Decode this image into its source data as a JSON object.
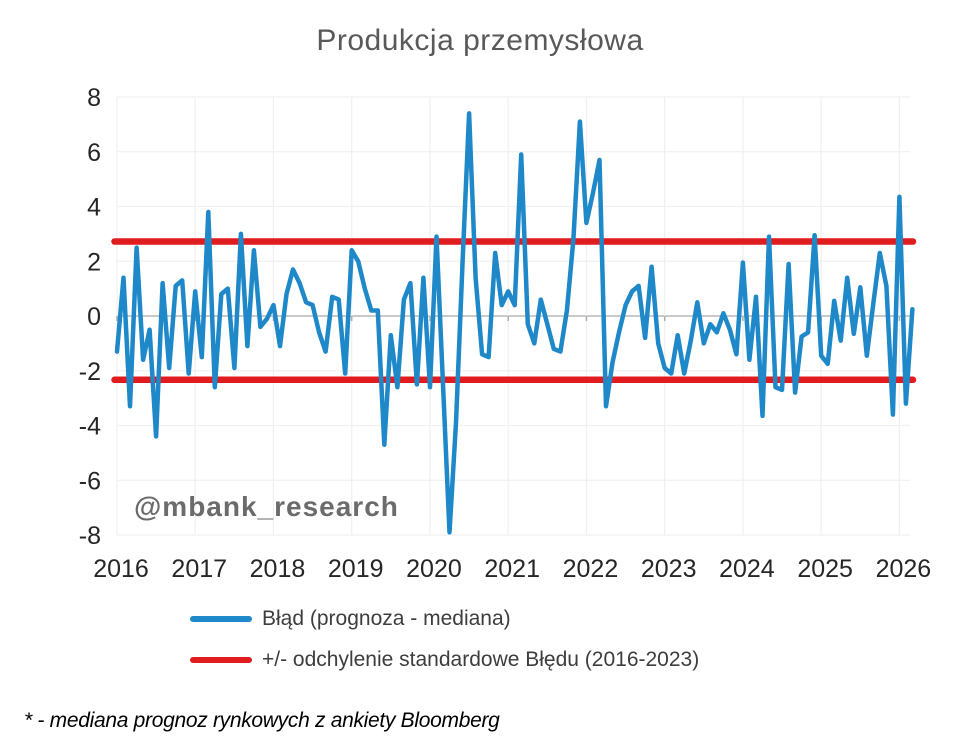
{
  "title": "Produkcja przemysłowa",
  "watermark": "@mbank_research",
  "footnote": "* - mediana prognoz rynkowych z ankiety Bloomberg",
  "colors": {
    "series_blue": "#1E88C9",
    "std_red": "#E01C1F",
    "title_gray": "#595959",
    "axis_label": "#262626",
    "legend_text": "#3d3d3d",
    "watermark_gray": "#6b6b6b",
    "gridline_faint": "#f0f0f0",
    "zero_line": "#c9c9c9",
    "zero_ticks": "#adadad"
  },
  "legend": {
    "items": [
      {
        "name": "error-series",
        "label": "Błąd (prognoza - mediana)",
        "color": "#1E88C9"
      },
      {
        "name": "std-lines",
        "label": "+/- odchylenie standardowe Błędu (2016-2023)",
        "color": "#E01C1F"
      }
    ]
  },
  "chart_data": {
    "type": "line",
    "title": "Produkcja przemysłowa",
    "xlabel": "",
    "ylabel": "",
    "ylim": [
      -8,
      8
    ],
    "grid": true,
    "legend_position": "bottom",
    "x_start": "2016-01",
    "frequency": "monthly",
    "xticks": [
      "2016",
      "2017",
      "2018",
      "2019",
      "2020",
      "2021",
      "2022",
      "2023",
      "2024",
      "2025",
      "2026"
    ],
    "yticks": [
      "8",
      "6",
      "4",
      "2",
      "0",
      "-2",
      "-4",
      "-6",
      "-8"
    ],
    "ytick_values": [
      8,
      6,
      4,
      2,
      0,
      -2,
      -4,
      -6,
      -8
    ],
    "series": [
      {
        "name": "Błąd (prognoza - mediana)",
        "color": "#1E88C9",
        "values": [
          -1.3,
          1.4,
          -3.3,
          2.5,
          -1.6,
          -0.5,
          -4.4,
          1.2,
          -1.9,
          1.1,
          1.3,
          -2.1,
          0.9,
          -1.5,
          3.8,
          -2.6,
          0.8,
          1.0,
          -1.9,
          3.0,
          -1.1,
          2.4,
          -0.4,
          -0.1,
          0.4,
          -1.1,
          0.8,
          1.7,
          1.2,
          0.5,
          0.4,
          -0.6,
          -1.3,
          0.7,
          0.6,
          -2.1,
          2.4,
          2.0,
          1.0,
          0.2,
          0.2,
          -4.7,
          -0.7,
          -2.6,
          0.6,
          1.2,
          -2.5,
          1.4,
          -2.6,
          2.9,
          -2.5,
          -7.9,
          -3.9,
          2.0,
          7.4,
          1.4,
          -1.4,
          -1.5,
          2.3,
          0.4,
          0.9,
          0.4,
          5.9,
          -0.3,
          -1.0,
          0.6,
          -0.3,
          -1.2,
          -1.3,
          0.2,
          2.8,
          7.1,
          3.4,
          4.5,
          5.7,
          -3.3,
          -1.7,
          -0.6,
          0.4,
          0.9,
          1.1,
          -0.8,
          1.8,
          -1.0,
          -1.9,
          -2.1,
          -0.7,
          -2.1,
          -0.9,
          0.5,
          -1.0,
          -0.3,
          -0.6,
          0.1,
          -0.5,
          -1.4,
          1.95,
          -1.6,
          0.7,
          -3.65,
          2.9,
          -2.6,
          -2.7,
          1.9,
          -2.8,
          -0.75,
          -0.6,
          2.95,
          -1.45,
          -1.75,
          0.55,
          -0.9,
          1.4,
          -0.65,
          1.05,
          -1.45,
          0.45,
          2.3,
          1.1,
          -3.6,
          4.35,
          -3.2,
          0.25
        ]
      },
      {
        "name": "+/- odchylenie standardowe Błędu (2016-2023)",
        "color": "#E01C1F",
        "type": "hline",
        "values": [
          2.72,
          -2.33
        ]
      }
    ]
  }
}
